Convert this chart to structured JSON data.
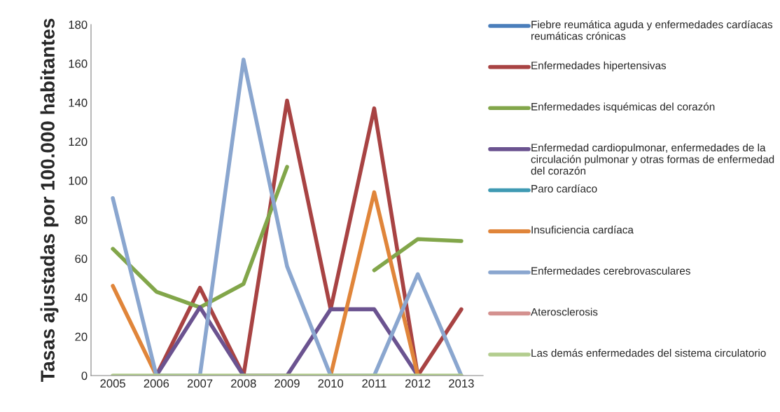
{
  "chart_data": {
    "type": "line",
    "ylabel": "Tasas ajustadas por 100.000 habitantes",
    "categories": [
      "2005",
      "2006",
      "2007",
      "2008",
      "2009",
      "2010",
      "2011",
      "2012",
      "2013"
    ],
    "series": [
      {
        "name": "Fiebre reumática aguda y enfermedades cardíacas reumáticas crónicas",
        "color": "#4a7ebb",
        "values": [
          null,
          null,
          null,
          null,
          null,
          null,
          null,
          null,
          null
        ]
      },
      {
        "name": "Enfermedades hipertensivas",
        "color": "#a84343",
        "values": [
          null,
          0,
          45,
          0,
          141,
          34,
          137,
          0,
          34
        ]
      },
      {
        "name": "Enfermedades isquémicas del corazón",
        "color": "#82a64a",
        "values": [
          65,
          43,
          35,
          47,
          107,
          null,
          54,
          70,
          69
        ]
      },
      {
        "name": "Enfermedad cardiopulmonar, enfermedades de la circulación pulmonar y otras formas de enfermedad del corazón",
        "color": "#6b5390",
        "values": [
          null,
          0,
          35,
          0,
          0,
          34,
          34,
          0,
          null
        ]
      },
      {
        "name": "Paro cardíaco",
        "color": "#3f9ab3",
        "values": [
          null,
          null,
          null,
          null,
          null,
          null,
          null,
          null,
          null
        ]
      },
      {
        "name": "Insuficiencia cardíaca",
        "color": "#e0853a",
        "values": [
          46,
          0,
          null,
          null,
          null,
          0,
          94,
          0,
          null
        ]
      },
      {
        "name": "Enfermedades cerebrovasculares",
        "color": "#8aa6cf",
        "values": [
          91,
          0,
          0,
          162,
          56,
          0,
          0,
          52,
          0
        ]
      },
      {
        "name": "Aterosclerosis",
        "color": "#d4918f",
        "values": [
          null,
          null,
          null,
          null,
          null,
          null,
          null,
          null,
          null
        ]
      },
      {
        "name": "Las demás enfermedades del sistema circulatorio",
        "color": "#b3cd8e",
        "values": [
          0,
          0,
          0,
          0,
          0,
          0,
          0,
          0,
          0
        ]
      }
    ],
    "ylim": [
      0,
      180
    ],
    "yticks": [
      0,
      20,
      40,
      60,
      80,
      100,
      120,
      140,
      160,
      180
    ],
    "grid": false,
    "legend": "right",
    "line_style": "solid",
    "marker": "none"
  }
}
